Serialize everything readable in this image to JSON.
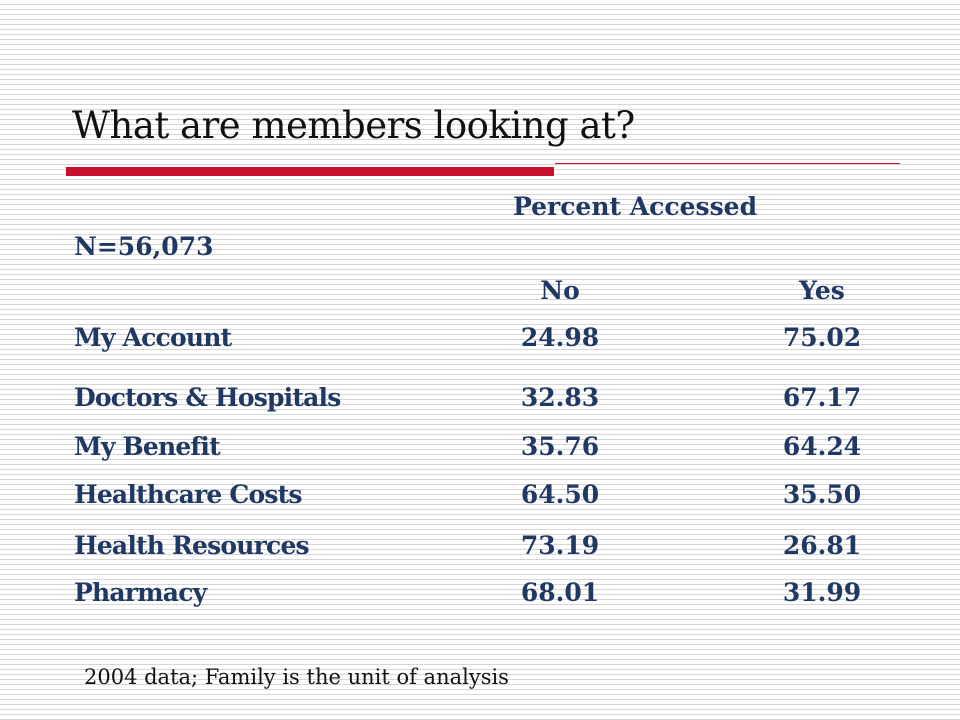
{
  "slide": {
    "title": "What are members looking at?",
    "accent_color": "#c8102e",
    "text_color": "#1f3864"
  },
  "table": {
    "group_header": "Percent Accessed",
    "sample_size": "N=56,073",
    "columns": [
      "No",
      "Yes"
    ],
    "rows": [
      {
        "label": "My Account",
        "no": "24.98",
        "yes": "75.02"
      },
      {
        "label": "Doctors & Hospitals",
        "no": "32.83",
        "yes": "67.17"
      },
      {
        "label": "My Benefit",
        "no": "35.76",
        "yes": "64.24"
      },
      {
        "label": "Healthcare Costs",
        "no": "64.50",
        "yes": "35.50"
      },
      {
        "label": "Health Resources",
        "no": "73.19",
        "yes": "26.81"
      },
      {
        "label": "Pharmacy",
        "no": "68.01",
        "yes": "31.99"
      }
    ]
  },
  "footnote": "2004 data; Family is the unit of analysis"
}
